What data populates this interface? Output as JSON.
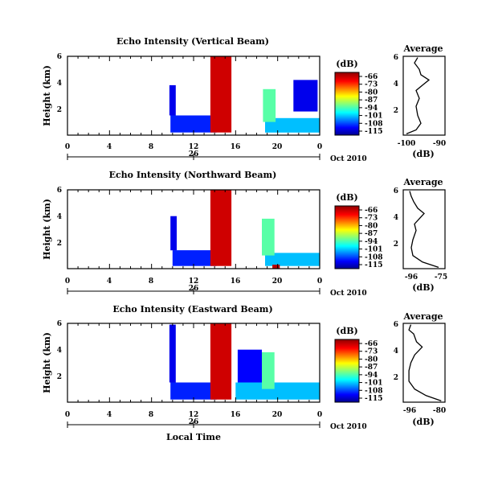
{
  "chart_data": [
    {
      "type": "heatmap",
      "title": "Echo Intensity (Vertical Beam)",
      "ylabel": "Height (km)",
      "y_ticks": [
        "2",
        "4",
        "6"
      ],
      "x_ticks": [
        "0",
        "4",
        "8",
        "12",
        "16",
        "20",
        "0"
      ],
      "date_tick": "26",
      "date_label": "Oct 2010",
      "colorbar": {
        "label": "(dB)",
        "ticks": [
          "-66",
          "-73",
          "-80",
          "-87",
          "-94",
          "-101",
          "-108",
          "-115"
        ]
      },
      "echo_regions": [
        {
          "x": [
            9.8,
            14.2
          ],
          "y": [
            0.2,
            1.5
          ],
          "level": 0.15
        },
        {
          "x": [
            9.7,
            10.3
          ],
          "y": [
            1.5,
            3.8
          ],
          "level": 0.1
        },
        {
          "x": [
            13.6,
            15.6
          ],
          "y": [
            0.2,
            6.0
          ],
          "level": 0.92
        },
        {
          "x": [
            18.8,
            24.0
          ],
          "y": [
            0.2,
            1.3
          ],
          "level": 0.3
        },
        {
          "x": [
            18.6,
            19.8
          ],
          "y": [
            1.0,
            3.5
          ],
          "level": 0.45
        },
        {
          "x": [
            21.5,
            23.8
          ],
          "y": [
            1.8,
            4.2
          ],
          "level": 0.1
        }
      ],
      "profile": {
        "title": "Average",
        "xlabel": "(dB)",
        "x_ticks": [
          "-100",
          "-90"
        ],
        "y_ticks": [
          "2",
          "4",
          "6"
        ],
        "xlim": [
          -100,
          -87
        ],
        "ylim": [
          0,
          6
        ],
        "points": [
          {
            "x": -99.0,
            "y": 0.1
          },
          {
            "x": -96.0,
            "y": 0.4
          },
          {
            "x": -94.5,
            "y": 0.9
          },
          {
            "x": -95.5,
            "y": 1.5
          },
          {
            "x": -96.0,
            "y": 2.2
          },
          {
            "x": -95.0,
            "y": 2.8
          },
          {
            "x": -96.0,
            "y": 3.4
          },
          {
            "x": -94.0,
            "y": 3.8
          },
          {
            "x": -92.0,
            "y": 4.2
          },
          {
            "x": -94.5,
            "y": 4.6
          },
          {
            "x": -95.0,
            "y": 5.0
          },
          {
            "x": -96.5,
            "y": 5.5
          },
          {
            "x": -95.5,
            "y": 5.9
          }
        ]
      }
    },
    {
      "type": "heatmap",
      "title": "Echo Intensity (Northward Beam)",
      "ylabel": "Height (km)",
      "y_ticks": [
        "2",
        "4",
        "6"
      ],
      "x_ticks": [
        "0",
        "4",
        "8",
        "12",
        "16",
        "20",
        "0"
      ],
      "date_tick": "26",
      "date_label": "Oct 2010",
      "colorbar": {
        "label": "(dB)",
        "ticks": [
          "-66",
          "-73",
          "-80",
          "-87",
          "-94",
          "-101",
          "-108",
          "-115"
        ]
      },
      "echo_regions": [
        {
          "x": [
            10.0,
            14.2
          ],
          "y": [
            0.2,
            1.4
          ],
          "level": 0.15
        },
        {
          "x": [
            9.8,
            10.4
          ],
          "y": [
            1.4,
            4.0
          ],
          "level": 0.1
        },
        {
          "x": [
            13.6,
            15.6
          ],
          "y": [
            0.2,
            6.0
          ],
          "level": 0.92
        },
        {
          "x": [
            18.8,
            24.0
          ],
          "y": [
            0.2,
            1.2
          ],
          "level": 0.3
        },
        {
          "x": [
            18.5,
            19.7
          ],
          "y": [
            1.0,
            3.8
          ],
          "level": 0.45
        },
        {
          "x": [
            19.5,
            20.2
          ],
          "y": [
            0.0,
            0.3
          ],
          "level": 0.95
        }
      ],
      "profile": {
        "title": "Average",
        "xlabel": "(dB)",
        "x_ticks": [
          "-96",
          "-75"
        ],
        "y_ticks": [
          "2",
          "4",
          "6"
        ],
        "xlim": [
          -100,
          -74
        ],
        "ylim": [
          0,
          6
        ],
        "points": [
          {
            "x": -78.0,
            "y": 0.1
          },
          {
            "x": -88.0,
            "y": 0.5
          },
          {
            "x": -94.0,
            "y": 1.0
          },
          {
            "x": -95.0,
            "y": 1.6
          },
          {
            "x": -94.0,
            "y": 2.2
          },
          {
            "x": -92.0,
            "y": 2.9
          },
          {
            "x": -93.0,
            "y": 3.4
          },
          {
            "x": -90.0,
            "y": 3.8
          },
          {
            "x": -87.0,
            "y": 4.2
          },
          {
            "x": -91.0,
            "y": 4.6
          },
          {
            "x": -93.5,
            "y": 5.1
          },
          {
            "x": -95.0,
            "y": 5.5
          },
          {
            "x": -96.0,
            "y": 5.9
          }
        ]
      }
    },
    {
      "type": "heatmap",
      "title": "Echo Intensity (Eastward Beam)",
      "ylabel": "Height (km)",
      "y_ticks": [
        "2",
        "4",
        "6"
      ],
      "x_ticks": [
        "0",
        "4",
        "8",
        "12",
        "16",
        "20",
        "0"
      ],
      "date_tick": "26",
      "date_label": "Oct 2010",
      "xlabel": "Local Time",
      "colorbar": {
        "label": "(dB)",
        "ticks": [
          "-66",
          "-73",
          "-80",
          "-87",
          "-94",
          "-101",
          "-108",
          "-115"
        ]
      },
      "echo_regions": [
        {
          "x": [
            9.8,
            14.2
          ],
          "y": [
            0.2,
            1.5
          ],
          "level": 0.15
        },
        {
          "x": [
            9.7,
            10.3
          ],
          "y": [
            1.5,
            5.9
          ],
          "level": 0.1
        },
        {
          "x": [
            13.6,
            15.6
          ],
          "y": [
            0.2,
            6.0
          ],
          "level": 0.92
        },
        {
          "x": [
            16.0,
            24.0
          ],
          "y": [
            0.2,
            1.5
          ],
          "level": 0.3
        },
        {
          "x": [
            18.5,
            19.7
          ],
          "y": [
            1.0,
            3.8
          ],
          "level": 0.45
        },
        {
          "x": [
            16.2,
            18.5
          ],
          "y": [
            1.5,
            4.0
          ],
          "level": 0.12
        }
      ],
      "profile": {
        "title": "Average",
        "xlabel": "(dB)",
        "x_ticks": [
          "-96",
          "-80"
        ],
        "y_ticks": [
          "2",
          "4",
          "6"
        ],
        "xlim": [
          -98,
          -76
        ],
        "ylim": [
          0,
          6
        ],
        "points": [
          {
            "x": -78.0,
            "y": 0.1
          },
          {
            "x": -86.0,
            "y": 0.5
          },
          {
            "x": -92.0,
            "y": 1.0
          },
          {
            "x": -95.0,
            "y": 1.6
          },
          {
            "x": -95.0,
            "y": 2.4
          },
          {
            "x": -94.0,
            "y": 3.0
          },
          {
            "x": -92.0,
            "y": 3.6
          },
          {
            "x": -88.0,
            "y": 4.2
          },
          {
            "x": -91.0,
            "y": 4.6
          },
          {
            "x": -92.5,
            "y": 5.2
          },
          {
            "x": -95.0,
            "y": 5.5
          },
          {
            "x": -94.0,
            "y": 5.9
          }
        ]
      }
    }
  ]
}
